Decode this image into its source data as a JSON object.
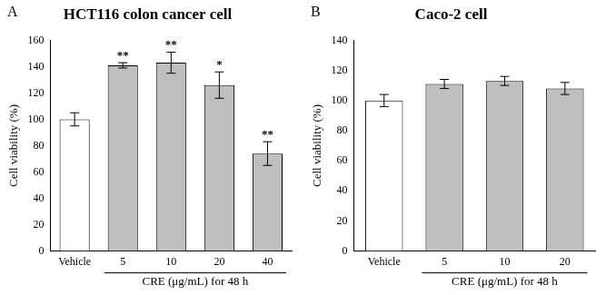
{
  "chart_data": [
    {
      "type": "bar",
      "panel_label": "A",
      "title": "HCT116 colon cancer cell",
      "categories": [
        "Vehicle",
        "5",
        "10",
        "20",
        "40"
      ],
      "values": [
        100,
        141,
        143,
        126,
        74
      ],
      "errors": [
        5,
        2,
        8,
        10,
        9
      ],
      "significance": [
        null,
        "**",
        "**",
        "*",
        "**"
      ],
      "colors": [
        "#ffffff",
        "#bfbfbf",
        "#bfbfbf",
        "#bfbfbf",
        "#bfbfbf"
      ],
      "ylabel": "Cell viability (%)",
      "xlabel": "CRE (μg/mL) for 48 h",
      "ylim": [
        0,
        160
      ],
      "yticks": [
        0,
        20,
        40,
        60,
        80,
        100,
        120,
        140,
        160
      ],
      "grid": false
    },
    {
      "type": "bar",
      "panel_label": "B",
      "title": "Caco-2 cell",
      "categories": [
        "Vehicle",
        "5",
        "10",
        "20"
      ],
      "values": [
        100,
        111,
        113,
        108
      ],
      "errors": [
        4,
        3,
        3,
        4
      ],
      "colors": [
        "#ffffff",
        "#bfbfbf",
        "#bfbfbf",
        "#bfbfbf"
      ],
      "ylabel": "Cell viability (%)",
      "xlabel": "CRE (μg/mL) for 48 h",
      "ylim": [
        0,
        140
      ],
      "yticks": [
        0,
        20,
        40,
        60,
        80,
        100,
        120,
        140
      ],
      "grid": false
    }
  ]
}
